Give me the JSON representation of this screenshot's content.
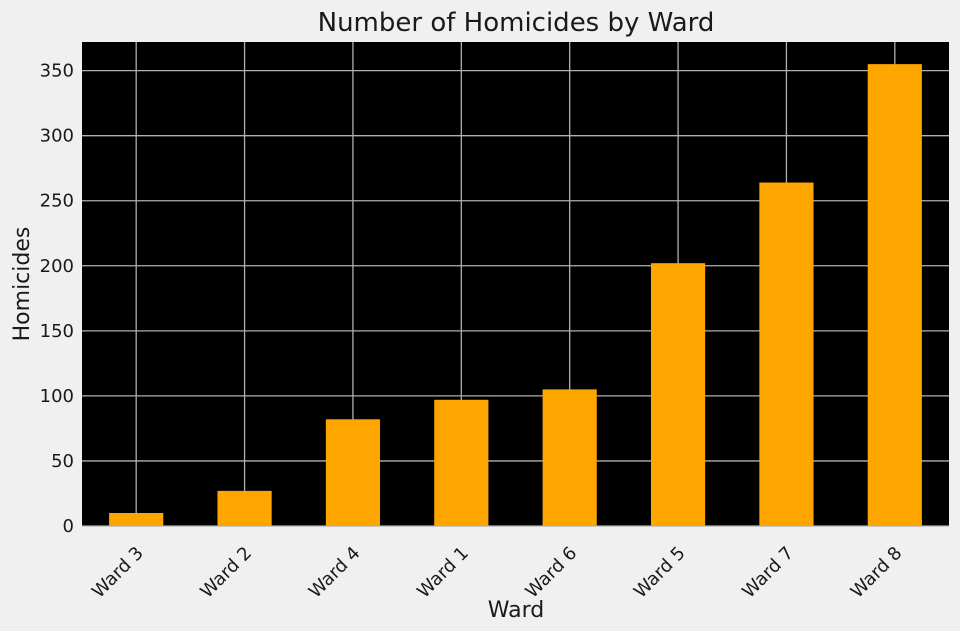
{
  "chart_data": {
    "type": "bar",
    "title": "Number of Homicides by Ward",
    "xlabel": "Ward",
    "ylabel": "Homicides",
    "categories": [
      "Ward 3",
      "Ward 2",
      "Ward 4",
      "Ward 1",
      "Ward 6",
      "Ward 5",
      "Ward 7",
      "Ward 8"
    ],
    "values": [
      10,
      27,
      82,
      97,
      105,
      202,
      264,
      355
    ],
    "ylim": [
      0,
      372
    ],
    "yticks": [
      "0",
      "50",
      "100",
      "150",
      "200",
      "250",
      "300",
      "350"
    ],
    "grid": true,
    "bar_color": "#ffa500",
    "plot_background": "#000000",
    "grid_color": "#b0b0b0",
    "figure_background": "#f0f0f0"
  }
}
